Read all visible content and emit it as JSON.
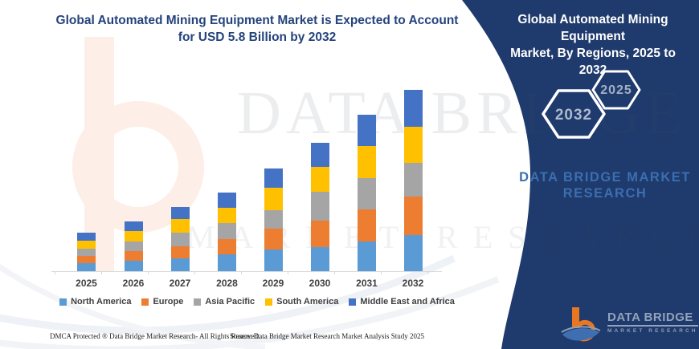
{
  "main_title": {
    "line1": "Global Automated Mining Equipment Market is Expected to Account",
    "line2": "for USD 5.8 Billion by 2032"
  },
  "panel": {
    "title_line1": "Global Automated Mining Equipment",
    "title_line2": "Market, By Regions, 2025 to 2032",
    "hexagon_back_label": "2032",
    "hexagon_front_label": "2025",
    "watermark_name_line1": "DATA BRIDGE MARKET",
    "watermark_name_line2": "RESEARCH",
    "logo_name": "DATA BRIDGE",
    "logo_subtext": "MARKET RESEARCH",
    "bg_color": "#1f3a6c",
    "accent_text_color": "#3b6fb0"
  },
  "watermark": {
    "text_large": "DATA BRIDGE",
    "text_small": "MARKET RESEARCH"
  },
  "footer": {
    "dmca": "DMCA Protected ® Data Bridge Market Research-  All Rights Reserved.",
    "source": "Source: Data Bridge Market Research  Market Analysis Study 2025"
  },
  "chart_data": {
    "type": "bar",
    "stacked": true,
    "title": "Global Automated Mining Equipment Market is Expected to Account for USD 5.8 Billion by 2032",
    "unit": "USD Billion",
    "categories": [
      "2025",
      "2026",
      "2027",
      "2028",
      "2029",
      "2030",
      "2031",
      "2032"
    ],
    "series": [
      {
        "name": "North America",
        "color": "#5b9bd5",
        "values": [
          0.27,
          0.33,
          0.4,
          0.54,
          0.69,
          0.76,
          0.95,
          1.16
        ]
      },
      {
        "name": "Europe",
        "color": "#ed7d31",
        "values": [
          0.23,
          0.31,
          0.4,
          0.49,
          0.66,
          0.87,
          1.03,
          1.23
        ]
      },
      {
        "name": "Asia Pacific",
        "color": "#a5a5a5",
        "values": [
          0.21,
          0.3,
          0.43,
          0.5,
          0.61,
          0.91,
          1.0,
          1.08
        ]
      },
      {
        "name": "South America",
        "color": "#ffc000",
        "values": [
          0.26,
          0.33,
          0.43,
          0.5,
          0.7,
          0.8,
          1.03,
          1.16
        ]
      },
      {
        "name": "Middle East and Africa",
        "color": "#4472c4",
        "values": [
          0.26,
          0.33,
          0.4,
          0.49,
          0.62,
          0.77,
          0.98,
          1.17
        ]
      }
    ],
    "totals": [
      1.23,
      1.6,
      2.06,
      2.52,
      3.28,
      4.11,
      4.99,
      5.8
    ],
    "xlabel": "",
    "ylabel": "",
    "ylim": [
      0,
      6
    ],
    "grid": false,
    "y_axis_visible": false,
    "legend_position": "bottom"
  }
}
